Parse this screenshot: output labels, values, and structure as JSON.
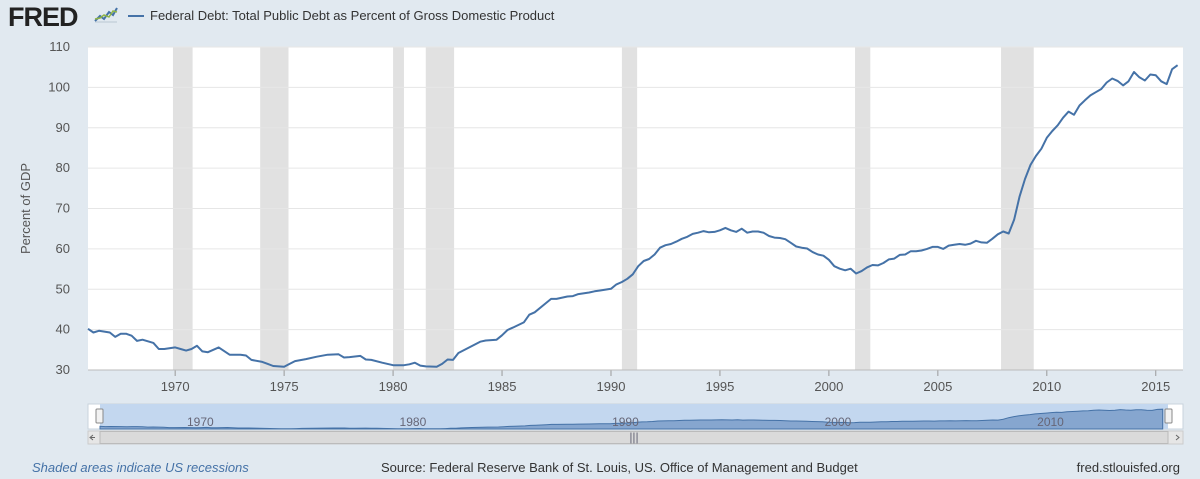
{
  "header": {
    "logo_text": "FRED",
    "logo_icon": "fred-line-graph-icon",
    "legend_label": "Federal Debt: Total Public Debt as Percent of Gross Domestic Product",
    "series_color": "#4572a7"
  },
  "footer": {
    "recession_note": "Shaded areas indicate US recessions",
    "source": "Source: Federal Reserve Bank of St. Louis, US. Office of Management and Budget",
    "site": "fred.stlouisfed.org"
  },
  "chart_data": {
    "type": "line",
    "title": "",
    "xlabel": "",
    "ylabel": "Percent of GDP",
    "xlim": [
      1966.0,
      2016.25
    ],
    "ylim": [
      30,
      110
    ],
    "y_ticks": [
      30,
      40,
      50,
      60,
      70,
      80,
      90,
      100,
      110
    ],
    "x_ticks": [
      1970,
      1975,
      1980,
      1985,
      1990,
      1995,
      2000,
      2005,
      2010,
      2015
    ],
    "x_tick_labels": [
      "1970",
      "1975",
      "1980",
      "1985",
      "1990",
      "1995",
      "2000",
      "2005",
      "2010",
      "2015"
    ],
    "grid": true,
    "legend": "top-left",
    "recessions": [
      [
        1969.9,
        1970.8
      ],
      [
        1973.9,
        1975.2
      ],
      [
        1980.0,
        1980.5
      ],
      [
        1981.5,
        1982.8
      ],
      [
        1990.5,
        1991.2
      ],
      [
        2001.2,
        2001.9
      ],
      [
        2007.9,
        2009.4
      ]
    ],
    "series": [
      {
        "color": "#4572a7",
        "points": [
          [
            1966.0,
            40.2
          ],
          [
            1966.25,
            39.3
          ],
          [
            1966.5,
            39.7
          ],
          [
            1967.0,
            39.3
          ],
          [
            1967.25,
            38.2
          ],
          [
            1967.5,
            39.0
          ],
          [
            1967.75,
            39.0
          ],
          [
            1968.0,
            38.5
          ],
          [
            1968.25,
            37.2
          ],
          [
            1968.5,
            37.5
          ],
          [
            1969.0,
            36.7
          ],
          [
            1969.25,
            35.2
          ],
          [
            1969.5,
            35.2
          ],
          [
            1970.0,
            35.6
          ],
          [
            1970.25,
            35.2
          ],
          [
            1970.5,
            34.8
          ],
          [
            1970.75,
            35.2
          ],
          [
            1971.0,
            36.0
          ],
          [
            1971.25,
            34.6
          ],
          [
            1971.5,
            34.4
          ],
          [
            1972.0,
            35.6
          ],
          [
            1972.5,
            33.8
          ],
          [
            1973.0,
            33.8
          ],
          [
            1973.25,
            33.6
          ],
          [
            1973.5,
            32.5
          ],
          [
            1974.0,
            32.0
          ],
          [
            1974.25,
            31.5
          ],
          [
            1974.5,
            31.0
          ],
          [
            1975.0,
            30.8
          ],
          [
            1975.25,
            31.5
          ],
          [
            1975.5,
            32.2
          ],
          [
            1976.0,
            32.7
          ],
          [
            1976.5,
            33.3
          ],
          [
            1977.0,
            33.8
          ],
          [
            1977.5,
            33.9
          ],
          [
            1977.75,
            33.1
          ],
          [
            1978.0,
            33.2
          ],
          [
            1978.5,
            33.5
          ],
          [
            1978.75,
            32.6
          ],
          [
            1979.0,
            32.5
          ],
          [
            1979.5,
            31.8
          ],
          [
            1980.0,
            31.2
          ],
          [
            1980.5,
            31.2
          ],
          [
            1980.75,
            31.4
          ],
          [
            1981.0,
            31.8
          ],
          [
            1981.25,
            31.1
          ],
          [
            1981.5,
            30.9
          ],
          [
            1982.0,
            30.8
          ],
          [
            1982.25,
            31.5
          ],
          [
            1982.5,
            32.6
          ],
          [
            1982.75,
            32.5
          ],
          [
            1983.0,
            34.2
          ],
          [
            1983.5,
            35.6
          ],
          [
            1984.0,
            37.0
          ],
          [
            1984.25,
            37.3
          ],
          [
            1984.75,
            37.5
          ],
          [
            1985.0,
            38.6
          ],
          [
            1985.25,
            39.9
          ],
          [
            1985.5,
            40.5
          ],
          [
            1986.0,
            41.8
          ],
          [
            1986.25,
            43.7
          ],
          [
            1986.5,
            44.3
          ],
          [
            1987.0,
            46.5
          ],
          [
            1987.25,
            47.6
          ],
          [
            1987.5,
            47.6
          ],
          [
            1988.0,
            48.2
          ],
          [
            1988.25,
            48.3
          ],
          [
            1988.5,
            48.8
          ],
          [
            1989.0,
            49.2
          ],
          [
            1989.25,
            49.5
          ],
          [
            1989.5,
            49.7
          ],
          [
            1990.0,
            50.1
          ],
          [
            1990.25,
            51.2
          ],
          [
            1990.5,
            51.8
          ],
          [
            1990.75,
            52.6
          ],
          [
            1991.0,
            53.7
          ],
          [
            1991.25,
            55.7
          ],
          [
            1991.5,
            57.0
          ],
          [
            1991.75,
            57.5
          ],
          [
            1992.0,
            58.6
          ],
          [
            1992.25,
            60.3
          ],
          [
            1992.5,
            60.9
          ],
          [
            1992.75,
            61.2
          ],
          [
            1993.0,
            61.8
          ],
          [
            1993.25,
            62.5
          ],
          [
            1993.5,
            63.0
          ],
          [
            1993.75,
            63.7
          ],
          [
            1994.0,
            64.0
          ],
          [
            1994.25,
            64.4
          ],
          [
            1994.5,
            64.1
          ],
          [
            1994.75,
            64.2
          ],
          [
            1995.0,
            64.6
          ],
          [
            1995.25,
            65.2
          ],
          [
            1995.5,
            64.6
          ],
          [
            1995.75,
            64.2
          ],
          [
            1996.0,
            65.0
          ],
          [
            1996.25,
            64.0
          ],
          [
            1996.5,
            64.3
          ],
          [
            1996.75,
            64.3
          ],
          [
            1997.0,
            64.0
          ],
          [
            1997.25,
            63.2
          ],
          [
            1997.5,
            62.8
          ],
          [
            1997.75,
            62.7
          ],
          [
            1998.0,
            62.4
          ],
          [
            1998.25,
            61.5
          ],
          [
            1998.5,
            60.6
          ],
          [
            1998.75,
            60.3
          ],
          [
            1999.0,
            60.1
          ],
          [
            1999.25,
            59.2
          ],
          [
            1999.5,
            58.6
          ],
          [
            1999.75,
            58.3
          ],
          [
            2000.0,
            57.3
          ],
          [
            2000.25,
            55.7
          ],
          [
            2000.5,
            55.1
          ],
          [
            2000.75,
            54.7
          ],
          [
            2001.0,
            55.1
          ],
          [
            2001.25,
            53.9
          ],
          [
            2001.5,
            54.5
          ],
          [
            2001.75,
            55.4
          ],
          [
            2002.0,
            56.0
          ],
          [
            2002.25,
            55.9
          ],
          [
            2002.5,
            56.5
          ],
          [
            2002.75,
            57.4
          ],
          [
            2003.0,
            57.6
          ],
          [
            2003.25,
            58.5
          ],
          [
            2003.5,
            58.6
          ],
          [
            2003.75,
            59.4
          ],
          [
            2004.0,
            59.4
          ],
          [
            2004.25,
            59.6
          ],
          [
            2004.5,
            60.0
          ],
          [
            2004.75,
            60.5
          ],
          [
            2005.0,
            60.5
          ],
          [
            2005.25,
            60.0
          ],
          [
            2005.5,
            60.8
          ],
          [
            2005.75,
            61.0
          ],
          [
            2006.0,
            61.2
          ],
          [
            2006.25,
            61.0
          ],
          [
            2006.5,
            61.3
          ],
          [
            2006.75,
            62.0
          ],
          [
            2007.0,
            61.6
          ],
          [
            2007.25,
            61.5
          ],
          [
            2007.5,
            62.5
          ],
          [
            2007.75,
            63.6
          ],
          [
            2008.0,
            64.3
          ],
          [
            2008.25,
            63.8
          ],
          [
            2008.5,
            67.2
          ],
          [
            2008.75,
            73.0
          ],
          [
            2009.0,
            77.3
          ],
          [
            2009.25,
            80.8
          ],
          [
            2009.5,
            83.0
          ],
          [
            2009.75,
            84.8
          ],
          [
            2010.0,
            87.5
          ],
          [
            2010.25,
            89.2
          ],
          [
            2010.5,
            90.6
          ],
          [
            2010.75,
            92.5
          ],
          [
            2011.0,
            94.0
          ],
          [
            2011.25,
            93.2
          ],
          [
            2011.5,
            95.5
          ],
          [
            2011.75,
            96.8
          ],
          [
            2012.0,
            98.0
          ],
          [
            2012.25,
            98.8
          ],
          [
            2012.5,
            99.6
          ],
          [
            2012.75,
            101.2
          ],
          [
            2013.0,
            102.2
          ],
          [
            2013.25,
            101.6
          ],
          [
            2013.5,
            100.5
          ],
          [
            2013.75,
            101.5
          ],
          [
            2014.0,
            103.8
          ],
          [
            2014.25,
            102.5
          ],
          [
            2014.5,
            101.7
          ],
          [
            2014.75,
            103.2
          ],
          [
            2015.0,
            103.0
          ],
          [
            2015.25,
            101.5
          ],
          [
            2015.5,
            100.8
          ],
          [
            2015.75,
            104.5
          ],
          [
            2016.0,
            105.5
          ]
        ]
      }
    ]
  },
  "navigator": {
    "tick_labels": [
      "1970",
      "1980",
      "1990",
      "2000",
      "2010"
    ],
    "tick_years": [
      1970,
      1980,
      1990,
      2000,
      2010
    ],
    "handle_glyph": "|||"
  }
}
